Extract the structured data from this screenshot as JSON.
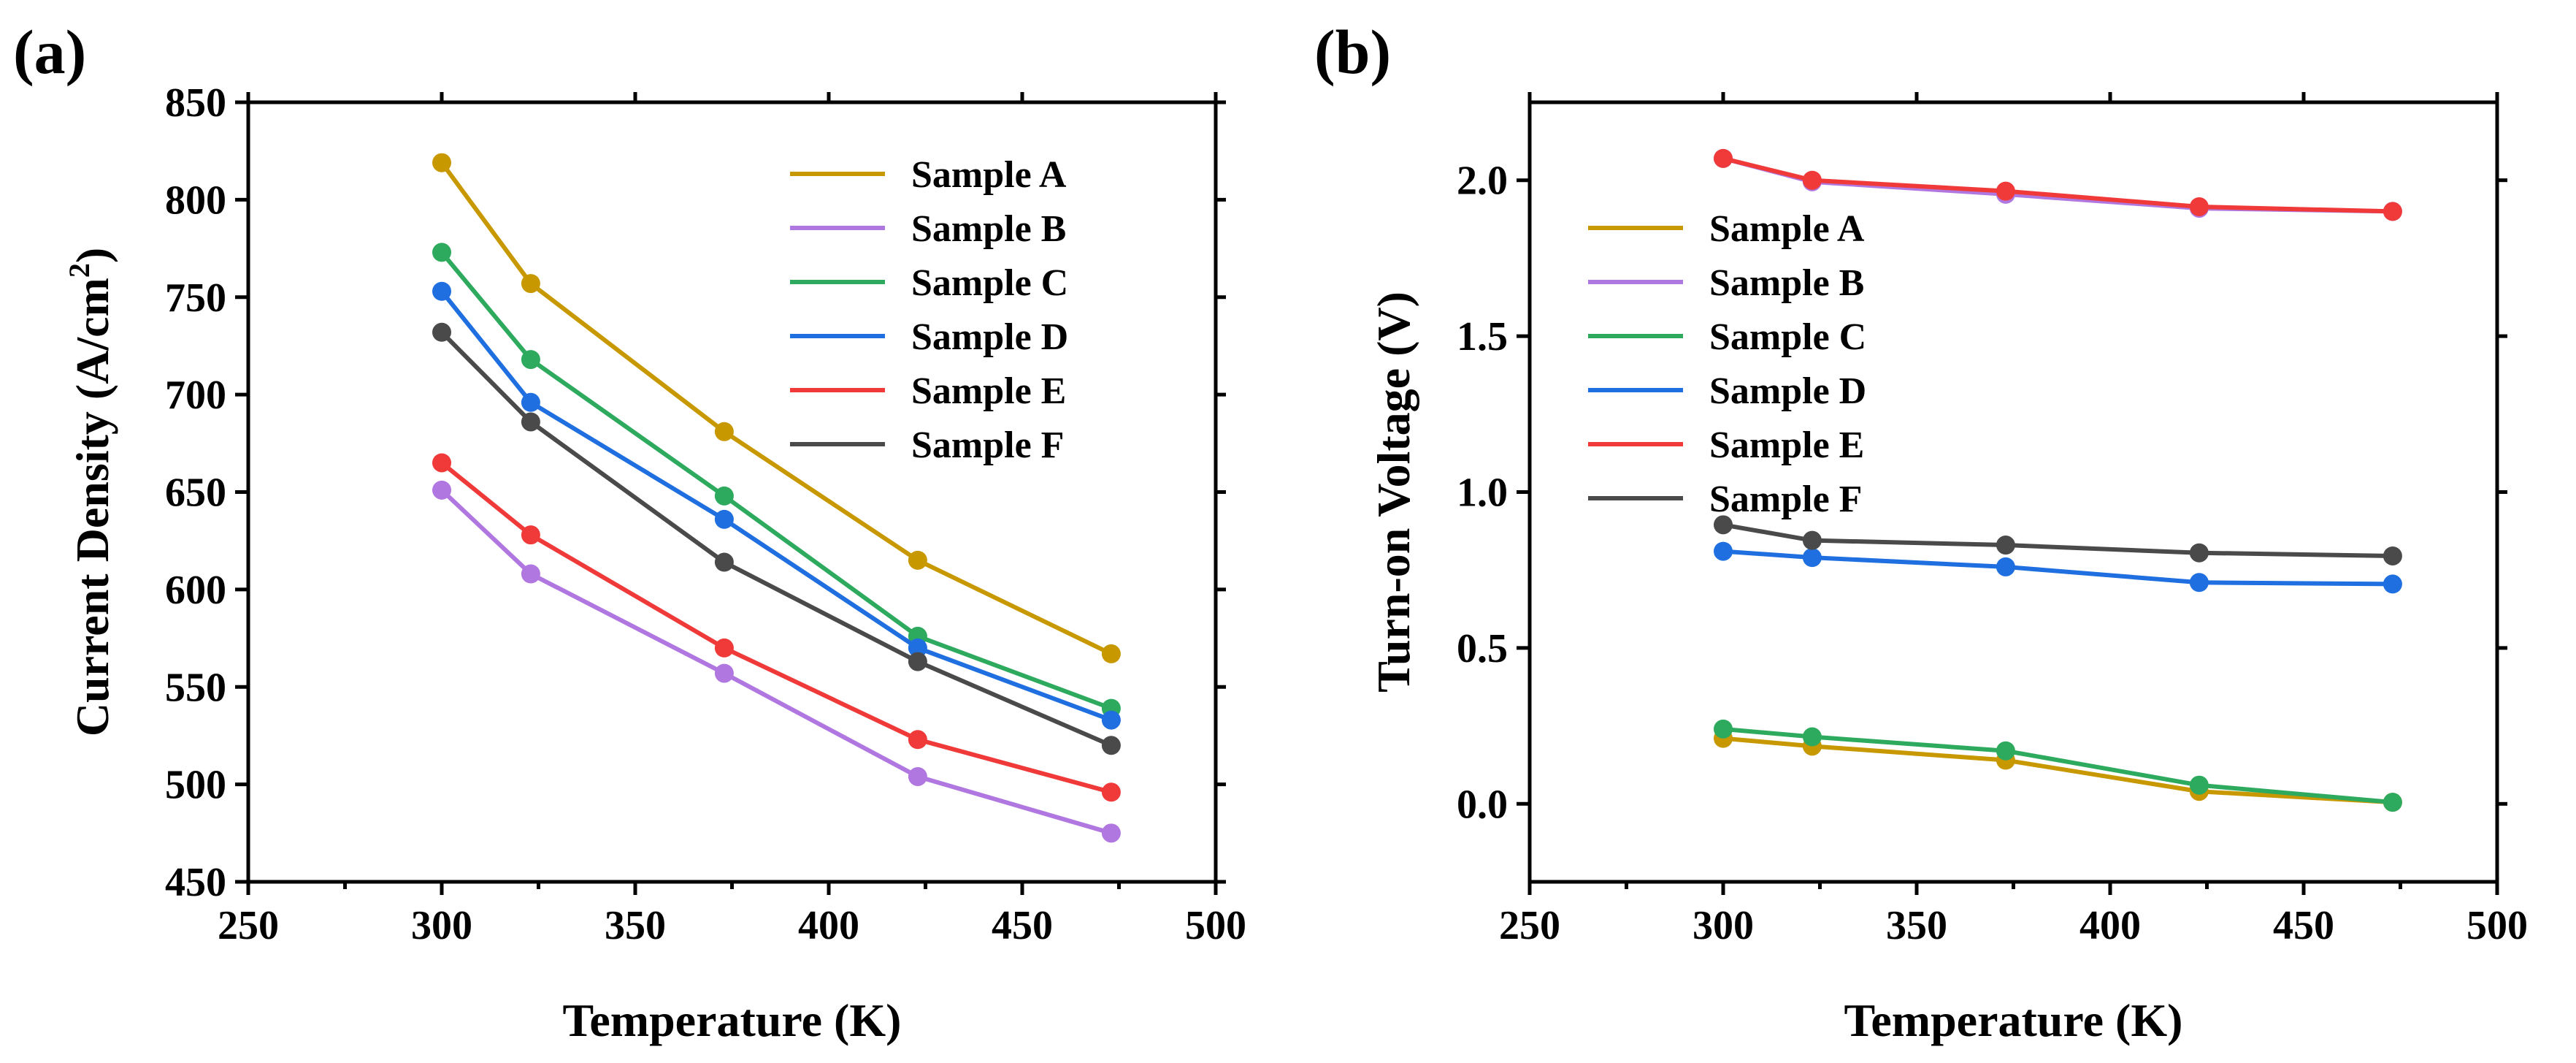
{
  "chart_data": [
    {
      "panel_label": "(a)",
      "type": "line",
      "xlabel": "Temperature (K)",
      "ylabel_main": "Current Density (A/cm",
      "ylabel_sup": "2",
      "ylabel_close": ")",
      "xlim": [
        250,
        500
      ],
      "ylim": [
        450,
        850
      ],
      "xticks": [
        250,
        300,
        350,
        400,
        450,
        500
      ],
      "yticks": [
        450,
        500,
        550,
        600,
        650,
        700,
        750,
        800,
        850
      ],
      "x": [
        300,
        323,
        373,
        423,
        473
      ],
      "legend_position": "top-right",
      "series": [
        {
          "name": "Sample A",
          "color": "#c89800",
          "values": [
            819,
            757,
            681,
            615,
            567
          ]
        },
        {
          "name": "Sample B",
          "color": "#b077e0",
          "values": [
            651,
            608,
            557,
            504,
            475
          ]
        },
        {
          "name": "Sample C",
          "color": "#2eaa5e",
          "values": [
            773,
            718,
            648,
            576,
            539
          ]
        },
        {
          "name": "Sample D",
          "color": "#1f6fe0",
          "values": [
            753,
            696,
            636,
            570,
            533
          ]
        },
        {
          "name": "Sample E",
          "color": "#f03a3a",
          "values": [
            665,
            628,
            570,
            523,
            496
          ]
        },
        {
          "name": "Sample F",
          "color": "#4a4a4a",
          "values": [
            732,
            686,
            614,
            563,
            520
          ]
        }
      ]
    },
    {
      "panel_label": "(b)",
      "type": "line",
      "xlabel": "Temperature (K)",
      "ylabel": "Turn-on Voltage (V)",
      "xlim": [
        250,
        500
      ],
      "ylim": [
        -0.25,
        2.25
      ],
      "xticks": [
        250,
        300,
        350,
        400,
        450,
        500
      ],
      "yticks": [
        0.0,
        0.5,
        1.0,
        1.5,
        2.0
      ],
      "ytick_labels": [
        "0.0",
        "0.5",
        "1.0",
        "1.5",
        "2.0"
      ],
      "x": [
        300,
        323,
        373,
        423,
        473
      ],
      "legend_position": "top-left",
      "series": [
        {
          "name": "Sample A",
          "color": "#c89800",
          "values": [
            0.21,
            0.185,
            0.14,
            0.04,
            0.005
          ]
        },
        {
          "name": "Sample B",
          "color": "#b077e0",
          "values": [
            2.07,
            1.995,
            1.955,
            1.91,
            1.9
          ]
        },
        {
          "name": "Sample C",
          "color": "#2eaa5e",
          "values": [
            0.24,
            0.215,
            0.17,
            0.06,
            0.005
          ]
        },
        {
          "name": "Sample D",
          "color": "#1f6fe0",
          "values": [
            0.81,
            0.79,
            0.76,
            0.71,
            0.705
          ]
        },
        {
          "name": "Sample E",
          "color": "#f03a3a",
          "values": [
            2.07,
            2.0,
            1.965,
            1.915,
            1.9
          ]
        },
        {
          "name": "Sample F",
          "color": "#4a4a4a",
          "values": [
            0.895,
            0.845,
            0.83,
            0.805,
            0.795
          ]
        }
      ]
    }
  ]
}
